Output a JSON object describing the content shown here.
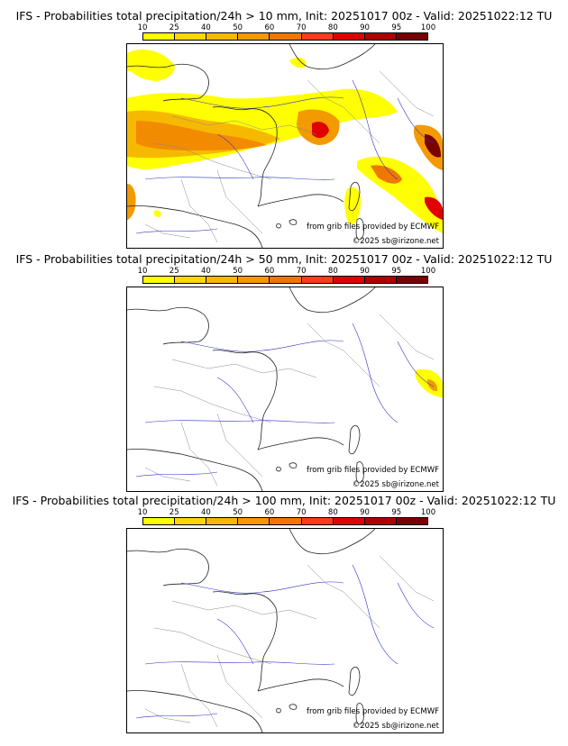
{
  "colorbar": {
    "ticks": [
      "10",
      "25",
      "40",
      "50",
      "60",
      "70",
      "80",
      "90",
      "95",
      "100"
    ],
    "colors": [
      "#ffff00",
      "#ffd700",
      "#f7b900",
      "#f39a00",
      "#ef7700",
      "#ff3a1f",
      "#e00000",
      "#b00000",
      "#7a0000"
    ]
  },
  "panels": [
    {
      "title": "IFS - Probabilities total precipitation/24h > 10 mm, Init: 20251017 00z - Valid: 20251022:12 TU",
      "source": "from grib files provided by ECMWF",
      "copyright": "©2025 sb@irizone.net"
    },
    {
      "title": "IFS - Probabilities total precipitation/24h > 50 mm, Init: 20251017 00z - Valid: 20251022:12 TU",
      "source": "from grib files provided by ECMWF",
      "copyright": "©2025 sb@irizone.net"
    },
    {
      "title": "IFS - Probabilities total precipitation/24h > 100 mm, Init: 20251017 00z - Valid: 20251022:12 TU",
      "source": "from grib files provided by ECMWF",
      "copyright": "©2025 sb@irizone.net"
    }
  ]
}
